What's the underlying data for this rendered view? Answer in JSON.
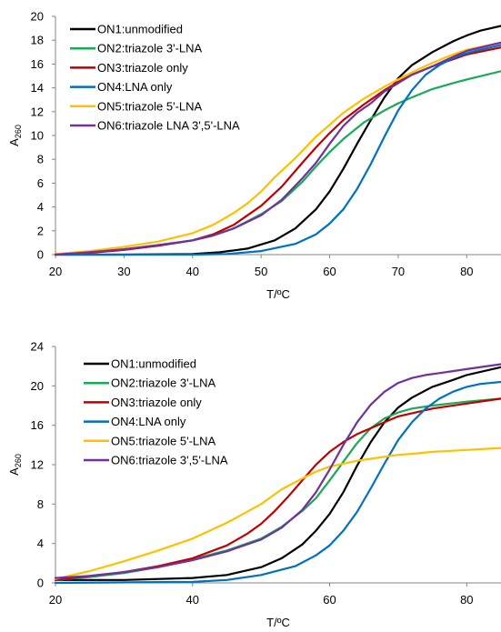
{
  "chart_data": [
    {
      "type": "line",
      "title": "",
      "xlabel": "T/ºC",
      "ylabel": "A",
      "ylabel_sub": "260",
      "xlim": [
        20,
        85
      ],
      "ylim": [
        0,
        20
      ],
      "xticks": [
        20,
        30,
        40,
        50,
        60,
        70,
        80
      ],
      "yticks": [
        0,
        2,
        4,
        6,
        8,
        10,
        12,
        14,
        16,
        18,
        20
      ],
      "grid": false,
      "legend_position": "top-left",
      "series": [
        {
          "name": "ON1:unmodified",
          "color": "#000000",
          "x": [
            20,
            30,
            40,
            44,
            48,
            52,
            55,
            58,
            60,
            62,
            64,
            66,
            68,
            70,
            72,
            75,
            78,
            80,
            82,
            85
          ],
          "y": [
            0,
            0,
            0.05,
            0.2,
            0.5,
            1.2,
            2.2,
            3.8,
            5.3,
            7.2,
            9.3,
            11.3,
            13.2,
            14.8,
            15.9,
            17.0,
            17.9,
            18.4,
            18.8,
            19.2
          ]
        },
        {
          "name": "ON2:triazole 3'-LNA",
          "color": "#1aaa55",
          "x": [
            20,
            25,
            30,
            35,
            40,
            43,
            46,
            50,
            53,
            56,
            58,
            60,
            62,
            65,
            68,
            70,
            72,
            75,
            78,
            80,
            85
          ],
          "y": [
            0.05,
            0.2,
            0.45,
            0.75,
            1.2,
            1.6,
            2.2,
            3.4,
            4.5,
            6.1,
            7.4,
            8.6,
            9.7,
            11.1,
            12.1,
            12.7,
            13.2,
            13.9,
            14.4,
            14.7,
            15.4
          ]
        },
        {
          "name": "ON3:triazole only",
          "color": "#c00000",
          "x": [
            20,
            25,
            30,
            35,
            40,
            43,
            46,
            50,
            53,
            56,
            58,
            60,
            62,
            65,
            68,
            70,
            72,
            75,
            78,
            80,
            85
          ],
          "y": [
            0,
            0.15,
            0.4,
            0.75,
            1.2,
            1.7,
            2.5,
            4.1,
            5.7,
            7.7,
            9.0,
            10.2,
            11.3,
            12.6,
            13.8,
            14.5,
            15.1,
            15.8,
            16.4,
            16.8,
            17.4
          ]
        },
        {
          "name": "ON4:LNA only",
          "color": "#0070c0",
          "x": [
            20,
            40,
            45,
            50,
            55,
            58,
            60,
            62,
            64,
            66,
            68,
            70,
            72,
            74,
            76,
            78,
            80,
            82,
            85
          ],
          "y": [
            0,
            0,
            0.05,
            0.3,
            0.9,
            1.7,
            2.6,
            3.8,
            5.5,
            7.6,
            9.9,
            12.1,
            13.8,
            15.1,
            15.9,
            16.5,
            16.9,
            17.2,
            17.6
          ]
        },
        {
          "name": "ON5:triazole 5'-LNA",
          "color": "#ffc000",
          "x": [
            20,
            25,
            30,
            35,
            40,
            43,
            46,
            48,
            50,
            52,
            55,
            58,
            60,
            62,
            65,
            68,
            70,
            72,
            75,
            78,
            80,
            85
          ],
          "y": [
            0.05,
            0.3,
            0.65,
            1.1,
            1.8,
            2.5,
            3.5,
            4.3,
            5.3,
            6.5,
            8.1,
            9.9,
            10.9,
            11.9,
            13.1,
            14.1,
            14.7,
            15.3,
            16.1,
            16.8,
            17.2,
            17.8
          ]
        },
        {
          "name": "ON6:triazole LNA 3',5'-LNA",
          "color": "#7030a0",
          "x": [
            20,
            25,
            30,
            35,
            40,
            43,
            46,
            50,
            53,
            56,
            58,
            60,
            62,
            64,
            66,
            68,
            70,
            72,
            75,
            78,
            80,
            85
          ],
          "y": [
            0,
            0.2,
            0.45,
            0.8,
            1.2,
            1.6,
            2.2,
            3.3,
            4.6,
            6.4,
            7.7,
            9.3,
            10.8,
            11.9,
            12.7,
            13.7,
            14.4,
            15.1,
            15.8,
            16.6,
            17.1,
            17.8
          ]
        }
      ]
    },
    {
      "type": "line",
      "title": "",
      "xlabel": "T/ºC",
      "ylabel": "A",
      "ylabel_sub": "260",
      "xlim": [
        20,
        85
      ],
      "ylim": [
        0,
        24
      ],
      "xticks": [
        20,
        40,
        60,
        80
      ],
      "yticks": [
        0,
        4,
        8,
        12,
        16,
        20,
        24
      ],
      "grid": false,
      "legend_position": "top-left",
      "series": [
        {
          "name": "ON1:unmodified",
          "color": "#000000",
          "x": [
            20,
            30,
            40,
            45,
            50,
            53,
            56,
            58,
            60,
            62,
            64,
            66,
            68,
            70,
            72,
            75,
            78,
            80,
            85
          ],
          "y": [
            0.3,
            0.3,
            0.5,
            0.8,
            1.6,
            2.5,
            3.9,
            5.3,
            7.0,
            9.2,
            11.9,
            14.3,
            16.3,
            17.8,
            18.8,
            19.9,
            20.6,
            21.1,
            21.9
          ]
        },
        {
          "name": "ON2:triazole 3'-LNA",
          "color": "#1aaa55",
          "x": [
            20,
            25,
            30,
            35,
            40,
            45,
            50,
            53,
            56,
            58,
            60,
            62,
            64,
            66,
            68,
            70,
            72,
            75,
            80,
            85
          ],
          "y": [
            0.3,
            0.6,
            1.0,
            1.6,
            2.4,
            3.3,
            4.5,
            5.7,
            7.3,
            8.6,
            10.4,
            12.3,
            14.2,
            15.7,
            16.7,
            17.3,
            17.7,
            18.0,
            18.4,
            18.7
          ]
        },
        {
          "name": "ON3:triazole only",
          "color": "#c00000",
          "x": [
            20,
            25,
            30,
            35,
            40,
            45,
            48,
            50,
            52,
            54,
            56,
            58,
            60,
            62,
            64,
            66,
            68,
            70,
            75,
            80,
            85
          ],
          "y": [
            0.3,
            0.7,
            1.1,
            1.7,
            2.5,
            3.8,
            5.0,
            6.0,
            7.3,
            8.8,
            10.4,
            12.0,
            13.3,
            14.3,
            15.1,
            15.7,
            16.3,
            16.9,
            17.7,
            18.2,
            18.7
          ]
        },
        {
          "name": "ON4:LNA only",
          "color": "#0070c0",
          "x": [
            20,
            40,
            45,
            50,
            55,
            58,
            60,
            62,
            64,
            66,
            68,
            70,
            72,
            74,
            76,
            78,
            80,
            82,
            85
          ],
          "y": [
            0,
            0.1,
            0.3,
            0.8,
            1.7,
            2.8,
            3.8,
            5.3,
            7.2,
            9.6,
            12.1,
            14.5,
            16.3,
            17.7,
            18.7,
            19.4,
            19.9,
            20.2,
            20.4
          ]
        },
        {
          "name": "ON5:triazole 5'-LNA",
          "color": "#ffc000",
          "x": [
            20,
            25,
            30,
            35,
            40,
            45,
            50,
            53,
            56,
            58,
            60,
            62,
            64,
            66,
            68,
            70,
            72,
            75,
            80,
            85
          ],
          "y": [
            0.4,
            1.2,
            2.2,
            3.3,
            4.5,
            6.1,
            8.0,
            9.5,
            10.6,
            11.3,
            11.8,
            12.1,
            12.4,
            12.6,
            12.8,
            13.0,
            13.1,
            13.3,
            13.5,
            13.7
          ]
        },
        {
          "name": "ON6:triazole 3',5'-LNA",
          "color": "#7030a0",
          "x": [
            20,
            25,
            30,
            35,
            40,
            45,
            50,
            53,
            56,
            58,
            60,
            62,
            64,
            66,
            68,
            70,
            72,
            74,
            76,
            78,
            80,
            85
          ],
          "y": [
            0.5,
            0.7,
            1.1,
            1.6,
            2.3,
            3.2,
            4.4,
            5.6,
            7.4,
            9.2,
            11.5,
            14.0,
            16.3,
            18.1,
            19.4,
            20.3,
            20.8,
            21.1,
            21.3,
            21.5,
            21.7,
            22.2
          ]
        }
      ]
    }
  ]
}
